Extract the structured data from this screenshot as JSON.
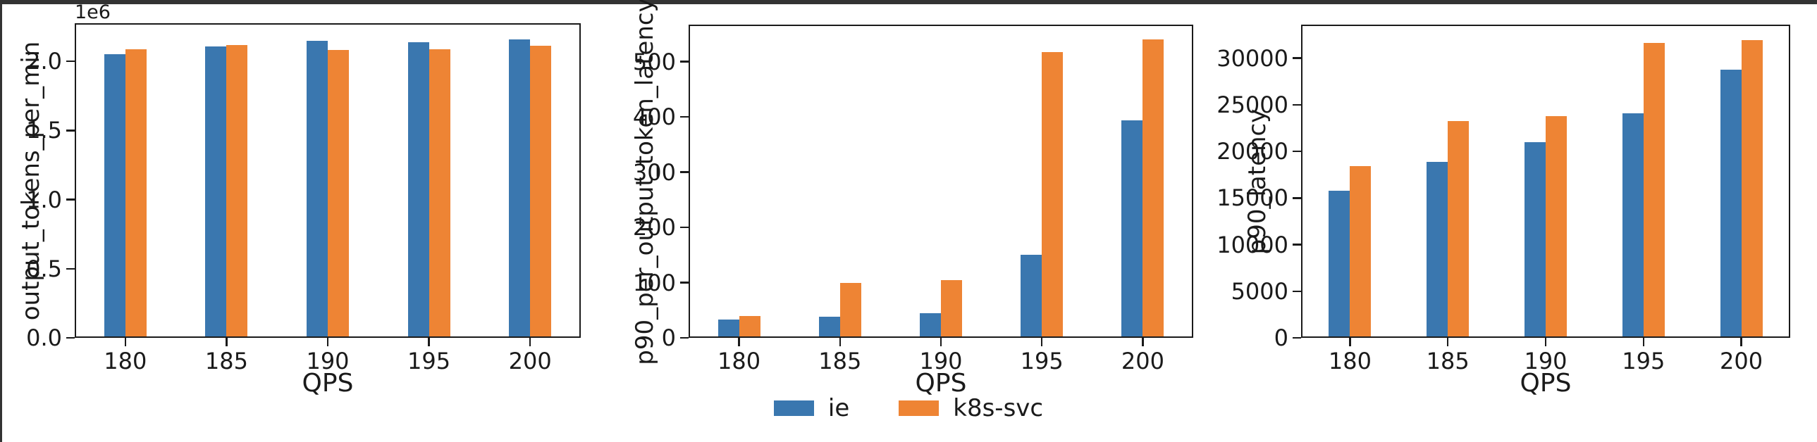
{
  "figure": {
    "background": "#ffffff",
    "edge_color": "#333333",
    "text_color": "#1a1a1a"
  },
  "legend": {
    "position": "bottom-center",
    "series": [
      {
        "label": "ie",
        "color": "#3a77af"
      },
      {
        "label": "k8s-svc",
        "color": "#ee8434"
      }
    ]
  },
  "chart_data": [
    {
      "type": "bar",
      "title": "",
      "xlabel": "QPS",
      "ylabel": "output_tokens_per_min",
      "y_offset_label": "1e6",
      "grid": false,
      "categories": [
        "180",
        "185",
        "190",
        "195",
        "200"
      ],
      "series": [
        {
          "name": "ie",
          "values": [
            2050000,
            2110000,
            2150000,
            2140000,
            2160000
          ]
        },
        {
          "name": "k8s-svc",
          "values": [
            2090000,
            2120000,
            2080000,
            2090000,
            2115000
          ]
        }
      ],
      "ylim": [
        0,
        2276000
      ],
      "yticks": [
        {
          "value": 0,
          "label": "0.0"
        },
        {
          "value": 500000,
          "label": "0.5"
        },
        {
          "value": 1000000,
          "label": "1.0"
        },
        {
          "value": 1500000,
          "label": "1.5"
        },
        {
          "value": 2000000,
          "label": "2.0"
        }
      ]
    },
    {
      "type": "bar",
      "title": "",
      "xlabel": "QPS",
      "ylabel": "p90_per_output_token_latency",
      "y_offset_label": "",
      "grid": false,
      "categories": [
        "180",
        "185",
        "190",
        "195",
        "200"
      ],
      "series": [
        {
          "name": "ie",
          "values": [
            33,
            38,
            44,
            150,
            394
          ]
        },
        {
          "name": "k8s-svc",
          "values": [
            40,
            100,
            104,
            517,
            540
          ]
        }
      ],
      "ylim": [
        0,
        567
      ],
      "yticks": [
        {
          "value": 0,
          "label": "0"
        },
        {
          "value": 100,
          "label": "100"
        },
        {
          "value": 200,
          "label": "200"
        },
        {
          "value": 300,
          "label": "300"
        },
        {
          "value": 400,
          "label": "400"
        },
        {
          "value": 500,
          "label": "500"
        }
      ]
    },
    {
      "type": "bar",
      "title": "",
      "xlabel": "QPS",
      "ylabel": "p90_latency",
      "y_offset_label": "",
      "grid": false,
      "categories": [
        "180",
        "185",
        "190",
        "195",
        "200"
      ],
      "series": [
        {
          "name": "ie",
          "values": [
            15800,
            18900,
            21000,
            24050,
            28800
          ]
        },
        {
          "name": "k8s-svc",
          "values": [
            18450,
            23250,
            23800,
            31650,
            31950
          ]
        }
      ],
      "ylim": [
        0,
        33600
      ],
      "yticks": [
        {
          "value": 0,
          "label": "0"
        },
        {
          "value": 5000,
          "label": "5000"
        },
        {
          "value": 10000,
          "label": "10000"
        },
        {
          "value": 15000,
          "label": "15000"
        },
        {
          "value": 20000,
          "label": "20000"
        },
        {
          "value": 25000,
          "label": "25000"
        },
        {
          "value": 30000,
          "label": "30000"
        }
      ]
    }
  ]
}
